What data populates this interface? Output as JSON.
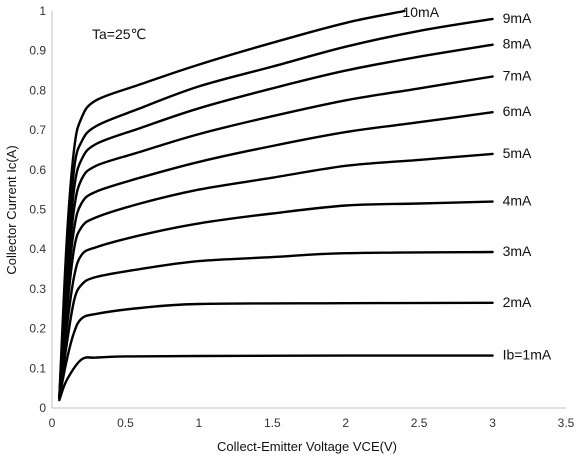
{
  "chart_data": {
    "type": "line",
    "xlabel": "Collect-Emitter Voltage VCE(V)",
    "ylabel": "Collector Current Ic(A)",
    "xlim": [
      0,
      3.5
    ],
    "ylim": [
      0,
      1
    ],
    "xticks": [
      "0",
      "0.5",
      "1",
      "1.5",
      "2",
      "2.5",
      "3",
      "3.5"
    ],
    "yticks": [
      "0",
      "0.1",
      "0.2",
      "0.3",
      "0.4",
      "0.5",
      "0.6",
      "0.7",
      "0.8",
      "0.9",
      "1"
    ],
    "annotation": "Ta=25℃",
    "grid": false,
    "series": [
      {
        "name": "Ib=1mA",
        "x": [
          0.05,
          0.1,
          0.2,
          0.3,
          0.5,
          1.0,
          2.0,
          3.0
        ],
        "y": [
          0.02,
          0.07,
          0.122,
          0.127,
          0.13,
          0.131,
          0.132,
          0.132
        ]
      },
      {
        "name": "2mA",
        "x": [
          0.05,
          0.1,
          0.15,
          0.2,
          0.3,
          0.6,
          1.0,
          2.0,
          3.0
        ],
        "y": [
          0.025,
          0.12,
          0.19,
          0.225,
          0.237,
          0.252,
          0.262,
          0.264,
          0.265
        ]
      },
      {
        "name": "3mA",
        "x": [
          0.05,
          0.1,
          0.15,
          0.2,
          0.3,
          0.6,
          1.0,
          1.5,
          2.0,
          3.0
        ],
        "y": [
          0.025,
          0.16,
          0.27,
          0.31,
          0.33,
          0.35,
          0.37,
          0.38,
          0.39,
          0.393
        ]
      },
      {
        "name": "4mA",
        "x": [
          0.05,
          0.1,
          0.15,
          0.2,
          0.3,
          0.6,
          1.0,
          1.5,
          2.0,
          2.5,
          3.0
        ],
        "y": [
          0.025,
          0.2,
          0.33,
          0.385,
          0.405,
          0.435,
          0.465,
          0.49,
          0.51,
          0.515,
          0.52
        ]
      },
      {
        "name": "5mA",
        "x": [
          0.05,
          0.1,
          0.15,
          0.2,
          0.3,
          0.6,
          1.0,
          1.5,
          2.0,
          2.5,
          3.0
        ],
        "y": [
          0.025,
          0.24,
          0.4,
          0.455,
          0.48,
          0.515,
          0.55,
          0.58,
          0.61,
          0.625,
          0.64
        ]
      },
      {
        "name": "6mA",
        "x": [
          0.05,
          0.1,
          0.15,
          0.2,
          0.3,
          0.6,
          1.0,
          1.5,
          2.0,
          2.5,
          3.0
        ],
        "y": [
          0.025,
          0.28,
          0.45,
          0.515,
          0.545,
          0.58,
          0.62,
          0.66,
          0.695,
          0.72,
          0.745
        ]
      },
      {
        "name": "7mA",
        "x": [
          0.05,
          0.1,
          0.15,
          0.2,
          0.3,
          0.6,
          1.0,
          1.5,
          2.0,
          2.5,
          3.0
        ],
        "y": [
          0.025,
          0.31,
          0.5,
          0.575,
          0.61,
          0.645,
          0.69,
          0.735,
          0.775,
          0.805,
          0.835
        ]
      },
      {
        "name": "8mA",
        "x": [
          0.05,
          0.1,
          0.15,
          0.2,
          0.3,
          0.6,
          1.0,
          1.5,
          2.0,
          2.5,
          3.0
        ],
        "y": [
          0.025,
          0.34,
          0.55,
          0.625,
          0.665,
          0.705,
          0.755,
          0.805,
          0.85,
          0.885,
          0.915
        ]
      },
      {
        "name": "9mA",
        "x": [
          0.05,
          0.1,
          0.15,
          0.2,
          0.3,
          0.6,
          1.0,
          1.5,
          2.0,
          2.5,
          3.0
        ],
        "y": [
          0.025,
          0.37,
          0.6,
          0.67,
          0.71,
          0.755,
          0.81,
          0.86,
          0.91,
          0.95,
          0.98
        ]
      },
      {
        "name": "10mA",
        "x": [
          0.05,
          0.1,
          0.15,
          0.2,
          0.3,
          0.6,
          1.0,
          1.5,
          2.0,
          2.4
        ],
        "y": [
          0.025,
          0.42,
          0.65,
          0.73,
          0.775,
          0.815,
          0.865,
          0.92,
          0.97,
          1.0
        ]
      }
    ]
  }
}
